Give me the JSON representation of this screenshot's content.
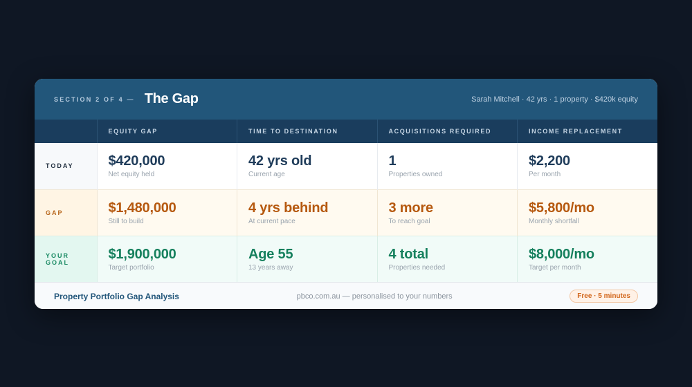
{
  "header": {
    "section_label": "SECTION 2 OF 4 —",
    "title": "The Gap",
    "profile": "Sarah Mitchell · 42 yrs · 1 property · $420k equity"
  },
  "columns": [
    "EQUITY GAP",
    "TIME TO DESTINATION",
    "ACQUISITIONS REQUIRED",
    "INCOME REPLACEMENT"
  ],
  "rows": [
    {
      "label": "TODAY",
      "cells": [
        {
          "value": "$420,000",
          "sub": "Net equity held"
        },
        {
          "value": "42 yrs old",
          "sub": "Current age"
        },
        {
          "value": "1",
          "sub": "Properties owned"
        },
        {
          "value": "$2,200",
          "sub": "Per month"
        }
      ]
    },
    {
      "label": "GAP",
      "cells": [
        {
          "value": "$1,480,000",
          "sub": "Still to build"
        },
        {
          "value": "4 yrs behind",
          "sub": "At current pace"
        },
        {
          "value": "3 more",
          "sub": "To reach goal"
        },
        {
          "value": "$5,800/mo",
          "sub": "Monthly shortfall"
        }
      ]
    },
    {
      "label": "YOUR GOAL",
      "cells": [
        {
          "value": "$1,900,000",
          "sub": "Target portfolio"
        },
        {
          "value": "Age 55",
          "sub": "13 years away"
        },
        {
          "value": "4 total",
          "sub": "Properties needed"
        },
        {
          "value": "$8,000/mo",
          "sub": "Target per month"
        }
      ]
    }
  ],
  "footer": {
    "title": "Property Portfolio Gap Analysis",
    "site": "pbco.com.au — personalised to your numbers",
    "badge": "Free · 5 minutes"
  },
  "colors": {
    "header_bg": "#22567a",
    "table_head_bg": "#1a3d5d",
    "today_value": "#1f3c5a",
    "gap_value": "#b6590f",
    "goal_value": "#15805d",
    "badge_text": "#d2661b"
  }
}
